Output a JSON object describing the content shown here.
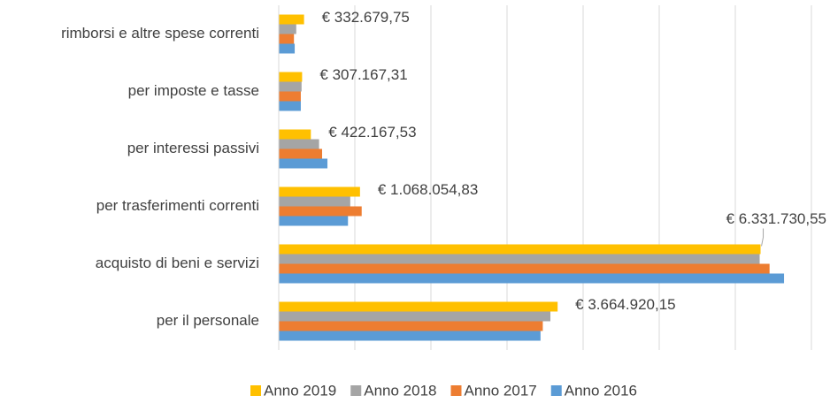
{
  "chart_data": {
    "type": "bar",
    "orientation": "horizontal",
    "categories": [
      "rimborsi e altre spese correnti",
      "per imposte e tasse",
      "per interessi passivi",
      "per trasferimenti correnti",
      "acquisto di beni e servizi",
      "per il personale"
    ],
    "series": [
      {
        "name": "Anno 2019",
        "color": "#ffc000",
        "values": [
          332679.75,
          307167.31,
          422167.53,
          1068054.83,
          6331730.55,
          3664920.15
        ],
        "value_labels": [
          "€ 332.679,75",
          "€ 307.167,31",
          "€ 422.167,53",
          "€ 1.068.054,83",
          "€ 6.331.730,55",
          "€ 3.664.920,15"
        ]
      },
      {
        "name": "Anno 2018",
        "color": "#a5a5a5",
        "values": [
          230000,
          300000,
          530000,
          940000,
          6320000,
          3570000
        ]
      },
      {
        "name": "Anno 2017",
        "color": "#ed7d31",
        "values": [
          200000,
          290000,
          570000,
          1090000,
          6450000,
          3470000
        ]
      },
      {
        "name": "Anno 2016",
        "color": "#5b9bd5",
        "values": [
          210000,
          290000,
          640000,
          910000,
          6640000,
          3440000
        ]
      }
    ],
    "xlim": [
      0,
      7000000
    ],
    "xticks": [
      0,
      1000000,
      2000000,
      3000000,
      4000000,
      5000000,
      6000000,
      7000000
    ],
    "grid": true,
    "legend": "bottom"
  }
}
